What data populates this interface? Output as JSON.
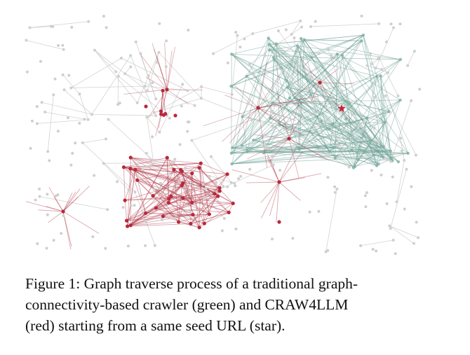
{
  "figure": {
    "caption_lines": [
      "Figure 1: Graph traverse process of a traditional graph-",
      "connectivity-based crawler (green) and CRAW4LLM",
      "(red) starting from a same seed URL (star)."
    ]
  }
}
